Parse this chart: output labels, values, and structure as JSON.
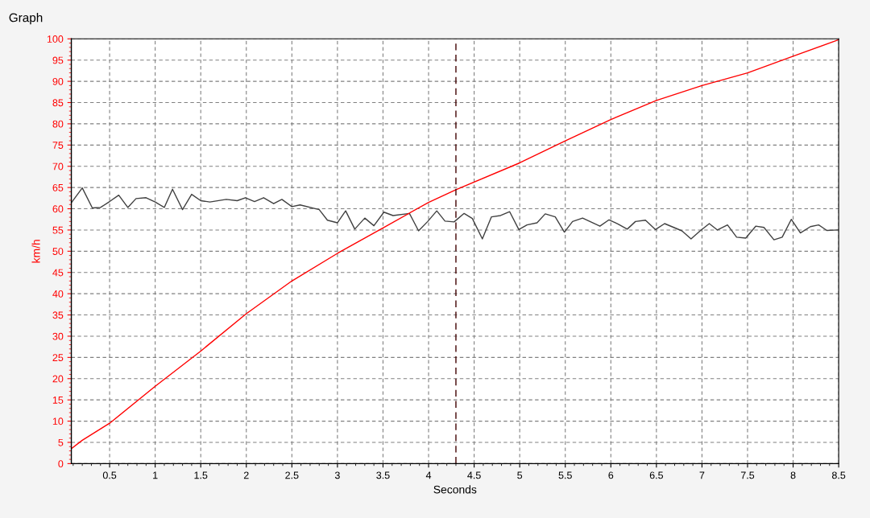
{
  "chart_data": {
    "type": "line",
    "title": "Graph",
    "xlabel": "Seconds",
    "ylabel": "km/h",
    "xlim": [
      0.08,
      8.5
    ],
    "ylim": [
      0,
      100
    ],
    "xticks": [
      0.5,
      1,
      1.5,
      2,
      2.5,
      3,
      3.5,
      4,
      4.5,
      5,
      5.5,
      6,
      6.5,
      7,
      7.5,
      8,
      8.5
    ],
    "yticks": [
      0,
      5,
      10,
      15,
      20,
      25,
      30,
      35,
      40,
      45,
      50,
      55,
      60,
      65,
      70,
      75,
      80,
      85,
      90,
      95,
      100
    ],
    "grid": true,
    "legend": false,
    "marker": "none",
    "line_style": "solid",
    "ref_lines": [
      {
        "axis": "x",
        "value": 4.3,
        "label": null,
        "color": "#400000",
        "line_style": "dashed"
      }
    ],
    "series": [
      {
        "color": "#404040",
        "x": [
          0.08,
          0.2,
          0.31,
          0.4,
          0.5,
          0.6,
          0.7,
          0.79,
          0.9,
          1.0,
          1.1,
          1.19,
          1.3,
          1.4,
          1.5,
          1.6,
          1.78,
          1.9,
          1.99,
          2.09,
          2.19,
          2.3,
          2.39,
          2.5,
          2.59,
          2.8,
          2.89,
          3.0,
          3.09,
          3.19,
          3.3,
          3.4,
          3.51,
          3.61,
          3.79,
          3.89,
          3.99,
          4.09,
          4.18,
          4.28,
          4.39,
          4.48,
          4.59,
          4.69,
          4.79,
          4.89,
          4.99,
          5.08,
          5.19,
          5.28,
          5.39,
          5.49,
          5.58,
          5.69,
          5.88,
          5.98,
          6.08,
          6.18,
          6.27,
          6.38,
          6.49,
          6.59,
          6.78,
          6.88,
          6.98,
          7.08,
          7.17,
          7.28,
          7.38,
          7.48,
          7.59,
          7.68,
          7.79,
          7.88,
          7.98,
          8.08,
          8.19,
          8.28,
          8.37,
          8.49
        ],
        "values": [
          61.4,
          64.9,
          60.2,
          60.3,
          61.7,
          63.2,
          60.3,
          62.4,
          62.6,
          61.6,
          60.3,
          64.6,
          59.8,
          63.4,
          61.9,
          61.6,
          62.2,
          61.9,
          62.6,
          61.7,
          62.6,
          61.2,
          62.2,
          60.5,
          60.9,
          59.8,
          57.3,
          56.7,
          59.5,
          55.2,
          57.8,
          56.0,
          59.2,
          58.4,
          58.9,
          54.8,
          57.0,
          59.5,
          57.1,
          56.9,
          58.9,
          57.7,
          52.9,
          58.1,
          58.4,
          59.3,
          55.1,
          56.2,
          56.7,
          58.8,
          58.1,
          54.5,
          57.0,
          57.8,
          55.9,
          57.4,
          56.4,
          55.2,
          57.0,
          57.3,
          55.1,
          56.5,
          54.8,
          52.9,
          54.8,
          56.5,
          55.0,
          56.2,
          53.3,
          53.1,
          55.9,
          55.6,
          52.7,
          53.3,
          57.5,
          54.3,
          55.8,
          56.2,
          54.9,
          55.0
        ]
      },
      {
        "color": "#ff0000",
        "x": [
          0.08,
          0.2,
          0.5,
          1,
          1.5,
          2,
          2.5,
          3,
          3.5,
          4,
          4.3,
          5,
          5.5,
          6,
          6.5,
          7,
          7.5,
          8,
          8.5
        ],
        "values": [
          3.5,
          5.5,
          9.5,
          18.2,
          26.5,
          35.3,
          43,
          49.5,
          55.5,
          61.5,
          64.5,
          70.8,
          76,
          81,
          85.5,
          89,
          92,
          95.9,
          99.8
        ]
      }
    ]
  }
}
